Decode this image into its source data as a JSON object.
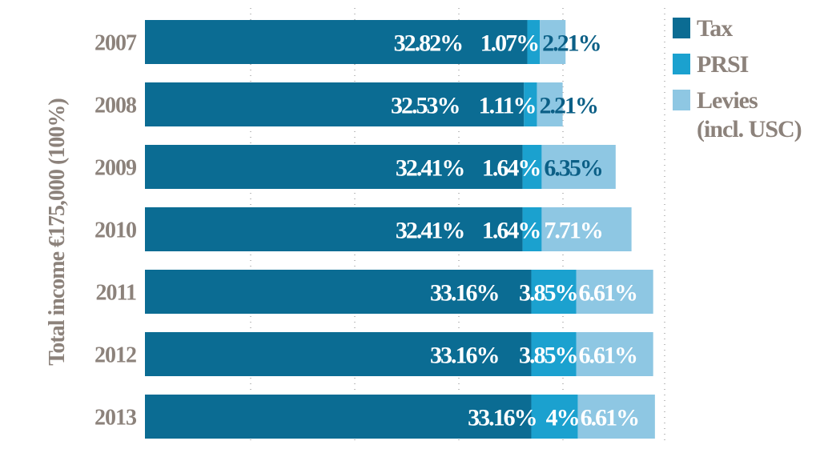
{
  "chart_data": {
    "type": "bar",
    "orientation": "horizontal",
    "stacked": true,
    "ylabel": "Total income €175,000 (100%)",
    "categories": [
      "2007",
      "2008",
      "2009",
      "2010",
      "2011",
      "2012",
      "2013"
    ],
    "series": [
      {
        "name": "Tax",
        "values": [
          32.82,
          32.53,
          32.41,
          32.41,
          33.16,
          33.16,
          33.16
        ],
        "labels": [
          "32.82%",
          "32.53%",
          "32.41%",
          "32.41%",
          "33.16%",
          "33.16%",
          "33.16%"
        ],
        "color": "#0b6c93"
      },
      {
        "name": "PRSI",
        "values": [
          1.07,
          1.11,
          1.64,
          1.64,
          3.85,
          3.85,
          4
        ],
        "labels": [
          "1.07%",
          "1.11%",
          "1.64%",
          "1.64%",
          "3.85%",
          "3.85%",
          "4%"
        ],
        "color": "#1ba1cf"
      },
      {
        "name": "Levies (incl. USC)",
        "legend_lines": [
          "Levies",
          "(incl. USC)"
        ],
        "values": [
          2.21,
          2.21,
          6.35,
          7.71,
          6.61,
          6.61,
          6.61
        ],
        "labels": [
          "2.21%",
          "2.21%",
          "6.35%",
          "7.71%",
          "6.61%",
          "6.61%",
          "6.61%"
        ],
        "color": "#8ec7e3"
      }
    ],
    "grid": "vertical dotted",
    "legend_position": "top-right",
    "label_dark_color": "#0b5f86"
  }
}
